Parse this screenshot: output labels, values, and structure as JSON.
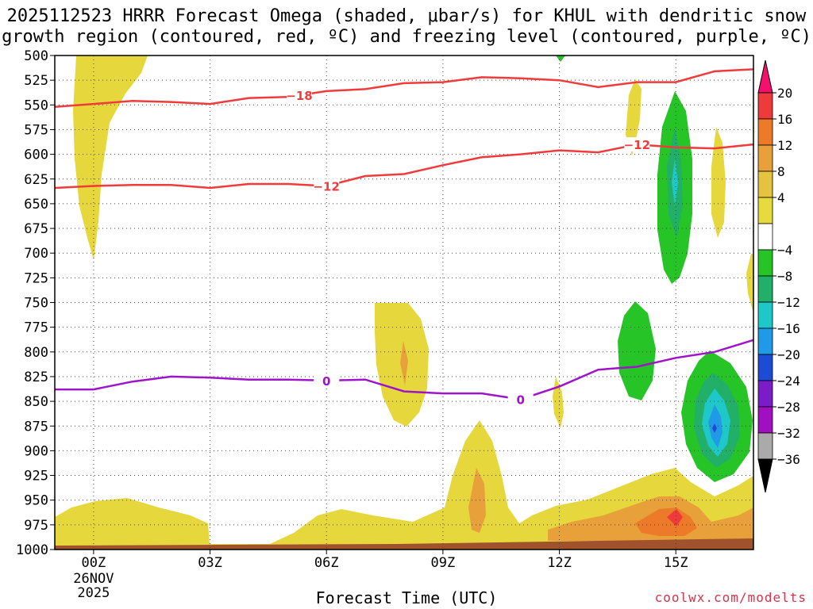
{
  "title_line1": "2025112523 HRRR Forecast Omega (shaded, μbar/s) for KHUL with dendritic snow",
  "title_line2": "growth region (contoured, red, ºC) and freezing level (contoured, purple, ºC)",
  "watermark": "coolwx.com/modelts",
  "chart_data": {
    "type": "contour",
    "xlabel": "Forecast Time (UTC)",
    "x_range_hours": [
      -1,
      17
    ],
    "x_ticks": [
      {
        "hour": 0,
        "label": "00Z",
        "sub": [
          "26NOV",
          "2025"
        ]
      },
      {
        "hour": 3,
        "label": "03Z",
        "sub": []
      },
      {
        "hour": 6,
        "label": "06Z",
        "sub": []
      },
      {
        "hour": 9,
        "label": "09Z",
        "sub": []
      },
      {
        "hour": 12,
        "label": "12Z",
        "sub": []
      },
      {
        "hour": 15,
        "label": "15Z",
        "sub": []
      }
    ],
    "y_range_mb": [
      500,
      1000
    ],
    "y_ticks": [
      "500",
      "525",
      "550",
      "575",
      "600",
      "625",
      "650",
      "675",
      "700",
      "725",
      "750",
      "775",
      "800",
      "825",
      "850",
      "875",
      "900",
      "925",
      "950",
      "975",
      "1000"
    ],
    "grid": "dotted",
    "colorbar": {
      "labels": [
        "20",
        "16",
        "12",
        "8",
        "4",
        "−4",
        "−8",
        "−12",
        "−16",
        "−20",
        "−24",
        "−28",
        "−32",
        "−36"
      ],
      "colors": [
        "#f5106e",
        "#ee3a3a",
        "#ec7a28",
        "#e8a13a",
        "#e5c340",
        "#e6da3c",
        "#ffffff",
        "#27c427",
        "#22b068",
        "#1ec8c8",
        "#209ae6",
        "#1c4bd6",
        "#7a1cc8",
        "#a010c0",
        "#aaaaaa",
        "#000000"
      ]
    },
    "contours": [
      {
        "name": "−18",
        "color": "#ef3b3b",
        "label_at_hour": 5.3,
        "points": [
          [
            -1,
            552
          ],
          [
            0,
            549
          ],
          [
            1,
            546
          ],
          [
            2,
            547
          ],
          [
            3,
            549
          ],
          [
            4,
            543
          ],
          [
            5,
            542
          ],
          [
            6,
            536
          ],
          [
            7,
            534
          ],
          [
            8,
            528
          ],
          [
            9,
            527
          ],
          [
            10,
            522
          ],
          [
            11,
            523
          ],
          [
            12,
            525
          ],
          [
            13,
            532
          ],
          [
            14,
            527
          ],
          [
            15,
            527
          ],
          [
            16,
            516
          ],
          [
            17,
            514
          ]
        ]
      },
      {
        "name": "−12",
        "color": "#ef3b3b",
        "label_at_hours": [
          6,
          14
        ],
        "points": [
          [
            -1,
            634
          ],
          [
            0,
            632
          ],
          [
            1,
            631
          ],
          [
            2,
            631
          ],
          [
            3,
            634
          ],
          [
            4,
            630
          ],
          [
            5,
            630
          ],
          [
            6,
            632
          ],
          [
            7,
            622
          ],
          [
            8,
            620
          ],
          [
            9,
            611
          ],
          [
            10,
            603
          ],
          [
            11,
            600
          ],
          [
            12,
            596
          ],
          [
            13,
            598
          ],
          [
            14,
            590
          ],
          [
            15,
            593
          ],
          [
            16,
            594
          ],
          [
            17,
            590
          ]
        ]
      },
      {
        "name": "0",
        "color": "#9e14c8",
        "label_at_hours": [
          6,
          11
        ],
        "points": [
          [
            -1,
            838
          ],
          [
            0,
            838
          ],
          [
            1,
            830
          ],
          [
            2,
            825
          ],
          [
            3,
            826
          ],
          [
            4,
            828
          ],
          [
            5,
            828
          ],
          [
            6,
            829
          ],
          [
            7,
            828
          ],
          [
            8,
            840
          ],
          [
            9,
            842
          ],
          [
            10,
            842
          ],
          [
            11,
            848
          ],
          [
            12,
            835
          ],
          [
            13,
            818
          ],
          [
            14,
            815
          ],
          [
            15,
            806
          ],
          [
            16,
            800
          ],
          [
            17,
            788
          ]
        ]
      }
    ],
    "shaded_regions": [
      {
        "name": "upper-left-weak-rising",
        "band": "4 to 8"
      },
      {
        "name": "mid-level-cell-08z",
        "band": "4 to 8"
      },
      {
        "name": "mid-level-cell-14z",
        "band": "−4 to −8"
      },
      {
        "name": "upper-cell-15z",
        "band": "−4 to −16"
      },
      {
        "name": "low-level-cell-16z",
        "band": "−4 to −28"
      },
      {
        "name": "low-level-sinking-15z",
        "band": "4 to 20"
      }
    ]
  }
}
